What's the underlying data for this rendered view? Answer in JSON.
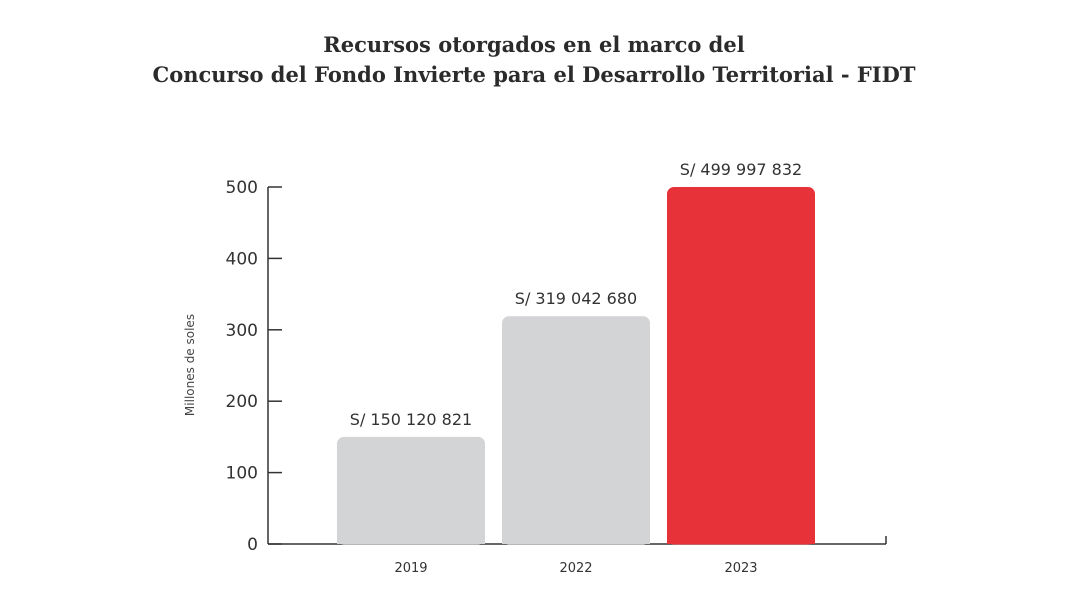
{
  "chart_data": {
    "type": "bar",
    "title_lines": [
      "Recursos otorgados en el marco del",
      "Concurso del Fondo Invierte para el Desarrollo Territorial - FIDT"
    ],
    "xlabel": "",
    "ylabel": "Millones de soles",
    "categories": [
      "2019",
      "2022",
      "2023"
    ],
    "values": [
      150.120821,
      319.04268,
      499.997832
    ],
    "value_labels": [
      "S/ 150 120 821",
      "S/ 319 042 680",
      "S/ 499 997 832"
    ],
    "bar_colors": [
      "#d3d4d6",
      "#d3d4d6",
      "#e8323a"
    ],
    "yticks": [
      0,
      100,
      200,
      300,
      400,
      500
    ],
    "ylim": [
      0,
      500
    ],
    "grid": false
  }
}
